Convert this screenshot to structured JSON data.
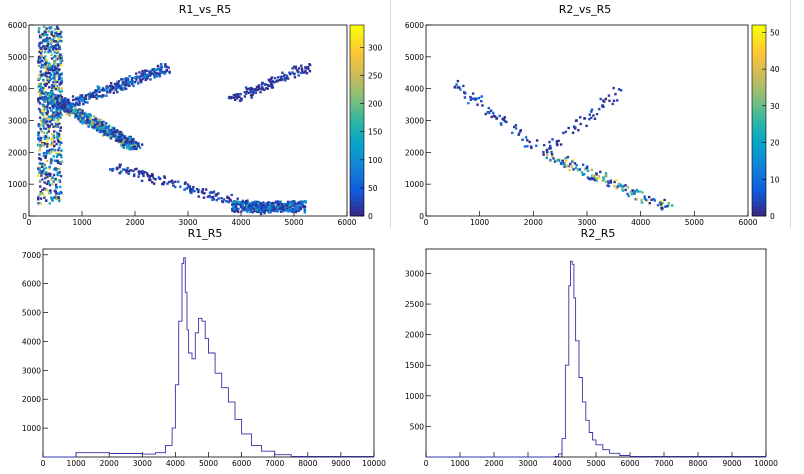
{
  "panels": {
    "p1": {
      "title": "R1_vs_R5"
    },
    "p2": {
      "title": "R2_vs_R5"
    },
    "p3": {
      "title": "R1_R5"
    },
    "p4": {
      "title": "R2_R5"
    }
  },
  "colors": {
    "hist_line": "#3333aa",
    "axis": "#000000",
    "palette": [
      "#352a87",
      "#0f5cdd",
      "#1481d6",
      "#06a4ca",
      "#2eb7a4",
      "#87bf77",
      "#d1bb59",
      "#fec832",
      "#f9fb0e"
    ]
  },
  "chart_data": [
    {
      "type": "heatmap",
      "title": "R1_vs_R5",
      "xlim": [
        0,
        6000
      ],
      "ylim": [
        0,
        6000
      ],
      "xticks": [
        0,
        1000,
        2000,
        3000,
        4000,
        5000,
        6000
      ],
      "yticks": [
        0,
        1000,
        2000,
        3000,
        4000,
        5000,
        6000
      ],
      "colorbar": {
        "range": [
          0,
          340
        ],
        "ticks": [
          0,
          50,
          100,
          150,
          200,
          250,
          300
        ]
      },
      "features": [
        {
          "name": "vertical band",
          "x": [
            150,
            600
          ],
          "y": [
            400,
            6000
          ],
          "peak": 340
        },
        {
          "name": "main diagonal",
          "from": [
            300,
            3800
          ],
          "to": [
            2000,
            2200
          ],
          "peak": 260
        },
        {
          "name": "upper branch",
          "from": [
            600,
            3500
          ],
          "to": [
            2600,
            4700
          ],
          "peak": 120
        },
        {
          "name": "lower branch",
          "from": [
            1500,
            1600
          ],
          "to": [
            4500,
            200
          ],
          "peak": 60
        },
        {
          "name": "bottom cluster",
          "x": [
            3800,
            5200
          ],
          "y": [
            150,
            500
          ],
          "peak": 150
        },
        {
          "name": "upper right streak",
          "from": [
            3800,
            3700
          ],
          "to": [
            5200,
            4700
          ],
          "peak": 40
        }
      ]
    },
    {
      "type": "heatmap",
      "title": "R2_vs_R5",
      "xlim": [
        0,
        6000
      ],
      "ylim": [
        0,
        6000
      ],
      "xticks": [
        0,
        1000,
        2000,
        3000,
        4000,
        5000,
        6000
      ],
      "yticks": [
        0,
        1000,
        2000,
        3000,
        4000,
        5000,
        6000
      ],
      "colorbar": {
        "range": [
          0,
          52
        ],
        "ticks": [
          0,
          10,
          20,
          30,
          40,
          50
        ]
      },
      "features": [
        {
          "name": "main band",
          "from": [
            2200,
            2000
          ],
          "to": [
            4500,
            300
          ],
          "peak": 52
        },
        {
          "name": "upper left branch",
          "from": [
            500,
            4200
          ],
          "to": [
            2000,
            2200
          ],
          "peak": 12
        },
        {
          "name": "upper right streak",
          "from": [
            2300,
            2200
          ],
          "to": [
            3600,
            4000
          ],
          "peak": 6
        }
      ]
    },
    {
      "type": "line",
      "title": "R1_R5",
      "xlim": [
        0,
        10000
      ],
      "ylim": [
        0,
        7200
      ],
      "xticks": [
        0,
        1000,
        2000,
        3000,
        4000,
        5000,
        6000,
        7000,
        8000,
        9000,
        10000
      ],
      "yticks": [
        1000,
        2000,
        3000,
        4000,
        5000,
        6000,
        7000
      ],
      "x": [
        0,
        1000,
        2000,
        3000,
        3400,
        3700,
        3900,
        4000,
        4100,
        4200,
        4250,
        4300,
        4350,
        4400,
        4500,
        4600,
        4700,
        4800,
        4900,
        5000,
        5200,
        5400,
        5600,
        5800,
        6000,
        6300,
        6600,
        7000,
        7500,
        10000
      ],
      "y": [
        0,
        150,
        120,
        100,
        150,
        400,
        1000,
        2500,
        4700,
        6700,
        6900,
        5700,
        4400,
        3600,
        3400,
        4300,
        4800,
        4700,
        4100,
        3600,
        2900,
        2400,
        1900,
        1300,
        800,
        400,
        200,
        80,
        20,
        0
      ]
    },
    {
      "type": "line",
      "title": "R2_R5",
      "xlim": [
        0,
        10000
      ],
      "ylim": [
        0,
        3400
      ],
      "xticks": [
        0,
        1000,
        2000,
        3000,
        4000,
        5000,
        6000,
        7000,
        8000,
        9000,
        10000
      ],
      "yticks": [
        500,
        1000,
        1500,
        2000,
        2500,
        3000
      ],
      "x": [
        0,
        3800,
        3900,
        4000,
        4100,
        4200,
        4250,
        4300,
        4350,
        4400,
        4500,
        4600,
        4700,
        4800,
        4900,
        5000,
        5200,
        5400,
        5700,
        6000,
        10000
      ],
      "y": [
        0,
        10,
        50,
        300,
        1500,
        2800,
        3200,
        3150,
        2600,
        1900,
        1300,
        900,
        600,
        400,
        280,
        200,
        120,
        60,
        25,
        10,
        0
      ]
    }
  ]
}
